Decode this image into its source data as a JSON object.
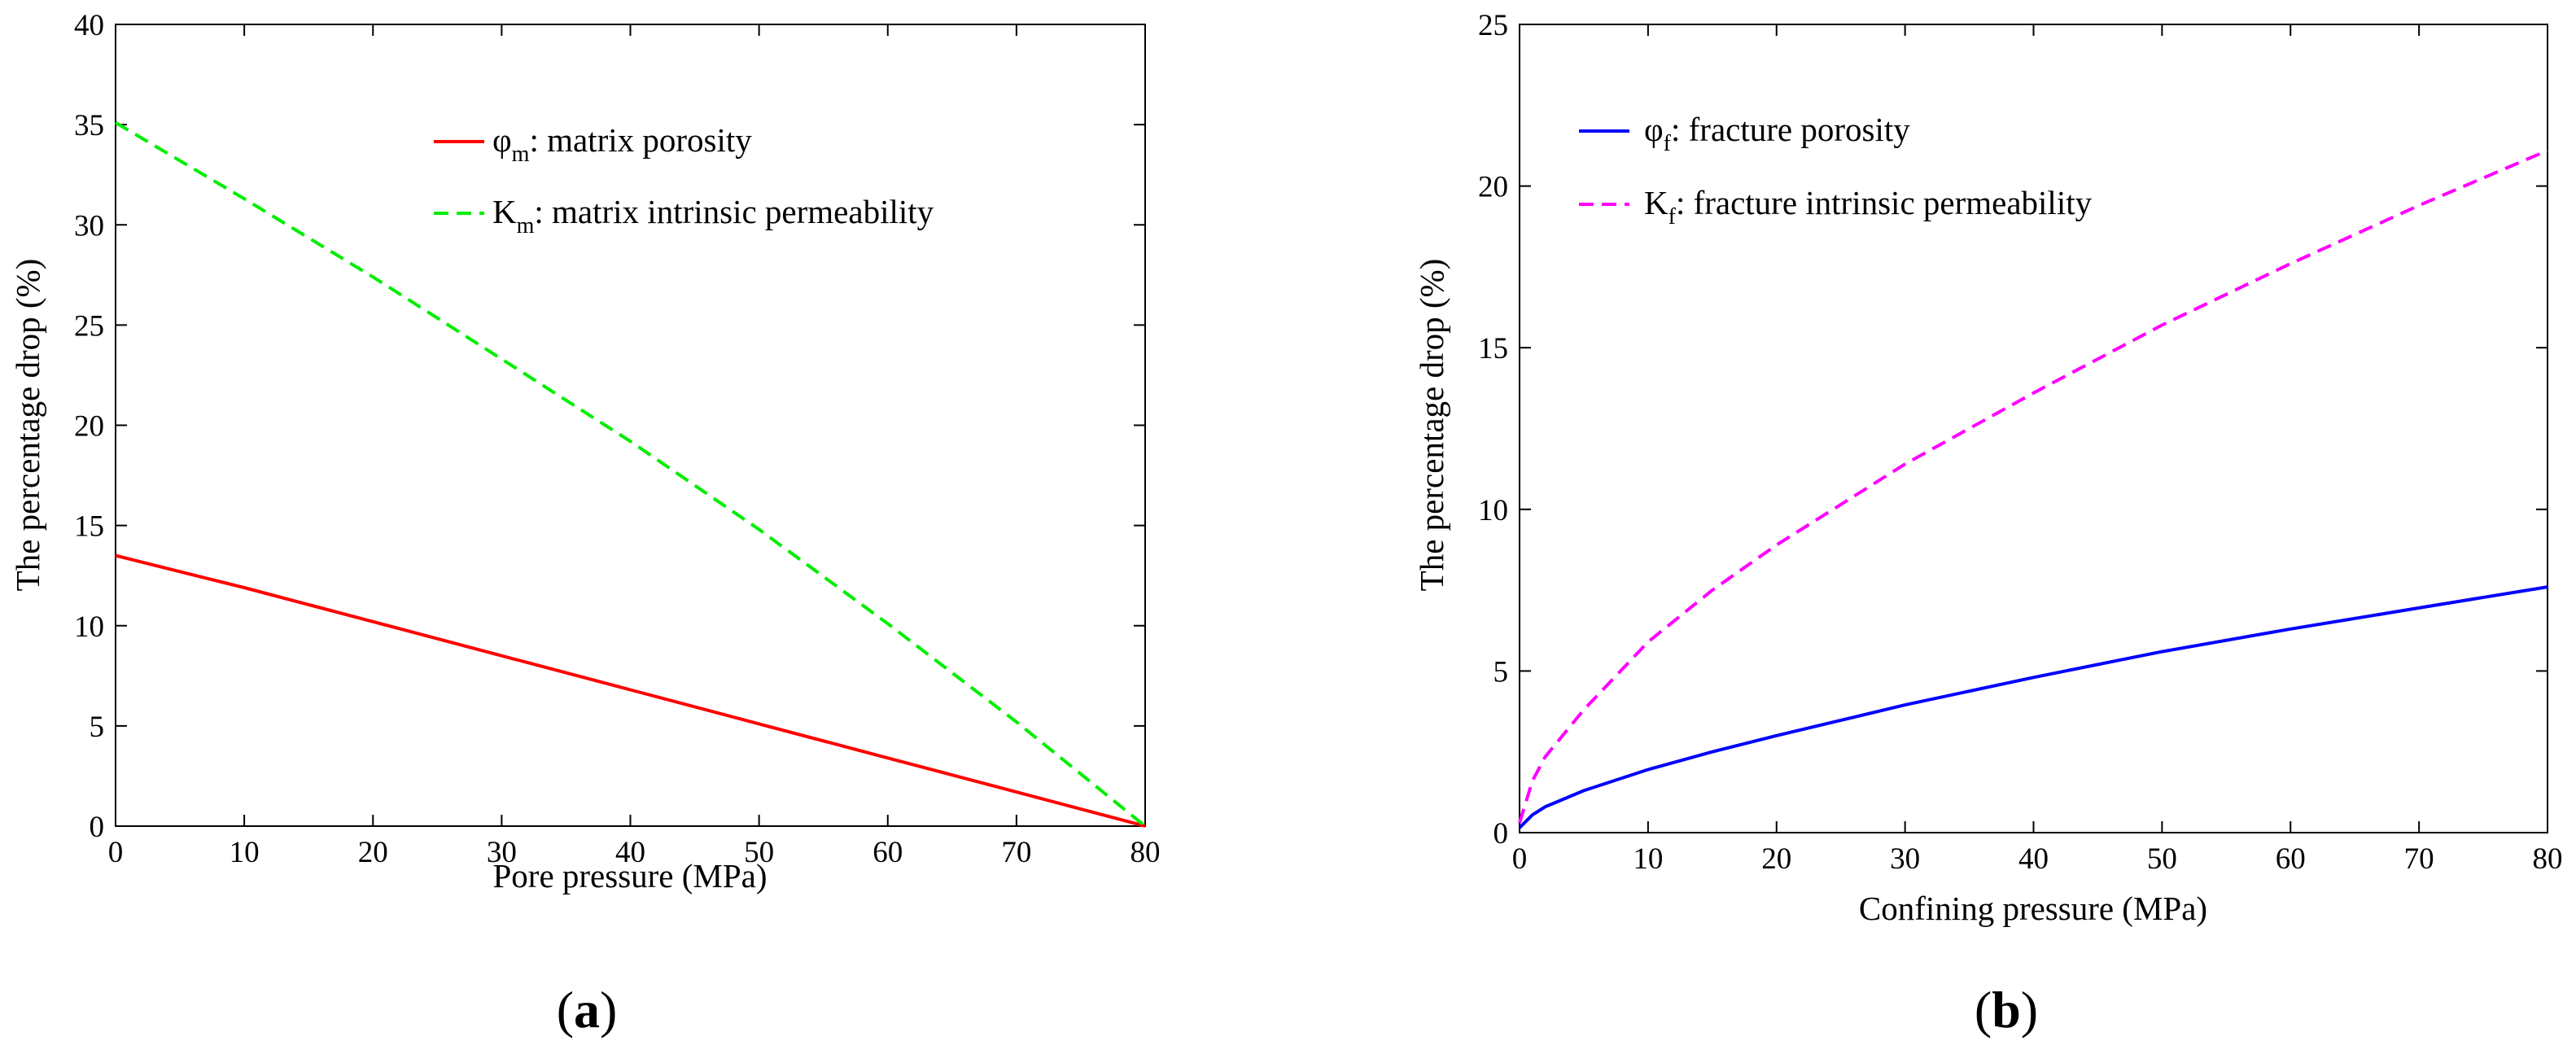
{
  "colors": {
    "phi_m": "#ff0000",
    "K_m": "#00ee00",
    "phi_f": "#0000ff",
    "K_f": "#ff00ff"
  },
  "chart_data": [
    {
      "type": "line",
      "panel": {
        "open": "(",
        "letter": "a",
        "close": ")"
      },
      "title": "",
      "xlabel": "Pore pressure (MPa)",
      "ylabel": "The percentage drop (%)",
      "xlim": [
        0,
        80
      ],
      "ylim": [
        0,
        40
      ],
      "xticks": [
        0,
        10,
        20,
        30,
        40,
        50,
        60,
        70,
        80
      ],
      "yticks": [
        0,
        5,
        10,
        15,
        20,
        25,
        30,
        35,
        40
      ],
      "grid": false,
      "legend_position": "top-center",
      "series": [
        {
          "name": "φm: matrix porosity",
          "symbol": "φ",
          "subscript": "m",
          "description": ": matrix porosity",
          "color_key": "phi_m",
          "style": "solid",
          "x": [
            0,
            10,
            20,
            30,
            40,
            50,
            60,
            70,
            80
          ],
          "y": [
            13.5,
            11.9,
            10.2,
            8.5,
            6.8,
            5.1,
            3.4,
            1.7,
            0
          ]
        },
        {
          "name": "Km: matrix intrinsic permeability",
          "symbol": "K",
          "subscript": "m",
          "description": ": matrix intrinsic permeability",
          "color_key": "K_m",
          "style": "dashed",
          "x": [
            0,
            10,
            20,
            30,
            40,
            50,
            60,
            70,
            80
          ],
          "y": [
            35.1,
            31.3,
            27.4,
            23.3,
            19.2,
            14.8,
            10.1,
            5.2,
            0
          ]
        }
      ]
    },
    {
      "type": "line",
      "panel": {
        "open": "(",
        "letter": "b",
        "close": ")"
      },
      "title": "",
      "xlabel": "Confining pressure (MPa)",
      "ylabel": "The percentage drop (%)",
      "xlim": [
        0,
        80
      ],
      "ylim": [
        0,
        25
      ],
      "xticks": [
        0,
        10,
        20,
        30,
        40,
        50,
        60,
        70,
        80
      ],
      "yticks": [
        0,
        5,
        10,
        15,
        20,
        25
      ],
      "grid": false,
      "legend_position": "top-left",
      "series": [
        {
          "name": "φf: fracture porosity",
          "symbol": "φ",
          "subscript": "f",
          "description": ": fracture porosity",
          "color_key": "phi_f",
          "style": "solid",
          "x": [
            0,
            1,
            2,
            5,
            10,
            15,
            20,
            30,
            40,
            50,
            60,
            70,
            80
          ],
          "y": [
            0.15,
            0.55,
            0.8,
            1.3,
            1.95,
            2.5,
            3.0,
            3.95,
            4.8,
            5.6,
            6.3,
            6.95,
            7.6
          ]
        },
        {
          "name": "Kf: fracture intrinsic permeability",
          "symbol": "K",
          "subscript": "f",
          "description": ": fracture intrinsic permeability",
          "color_key": "K_f",
          "style": "dashed",
          "x": [
            0,
            1,
            2,
            5,
            10,
            15,
            20,
            30,
            40,
            50,
            60,
            70,
            80
          ],
          "y": [
            0.3,
            1.6,
            2.35,
            3.8,
            5.9,
            7.5,
            8.9,
            11.4,
            13.6,
            15.7,
            17.6,
            19.4,
            21.1
          ]
        }
      ]
    }
  ]
}
